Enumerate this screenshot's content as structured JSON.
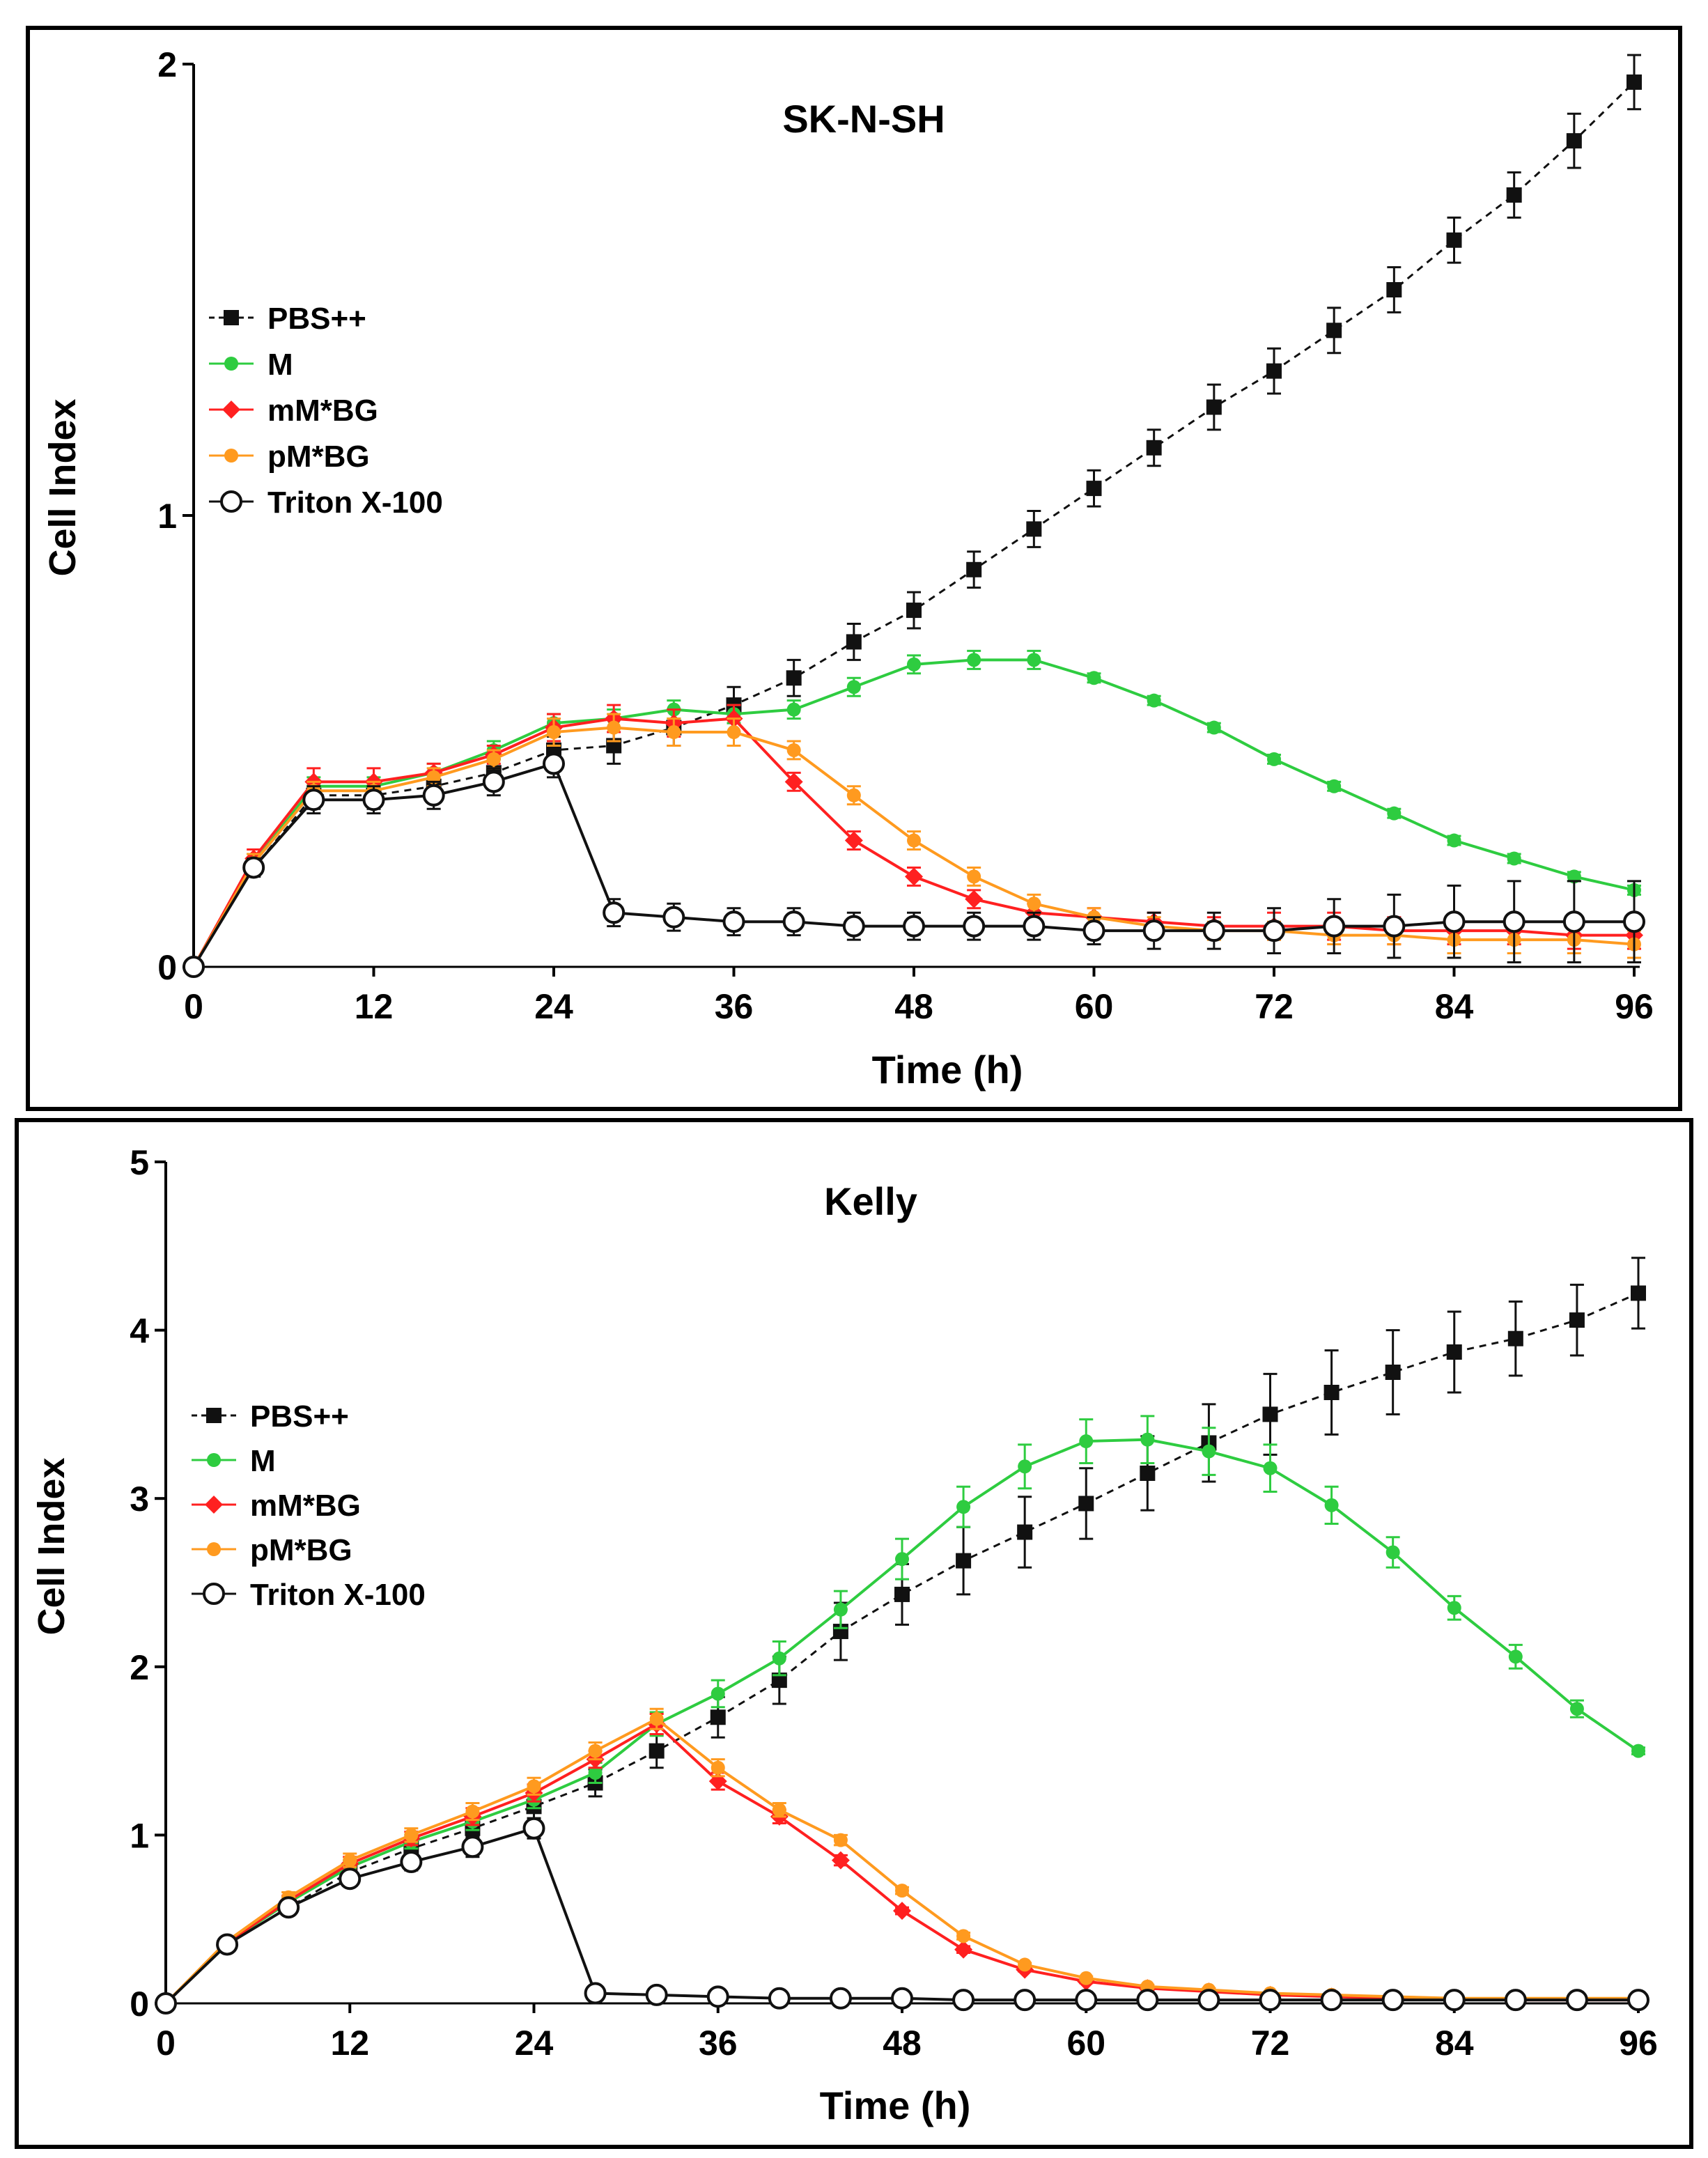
{
  "chart_data": [
    {
      "type": "line",
      "title": "SK-N-SH",
      "xlabel": "Time (h)",
      "ylabel": "Cell Index",
      "xlim": [
        0,
        96
      ],
      "ylim": [
        0,
        2
      ],
      "xticks": [
        0,
        12,
        24,
        36,
        48,
        60,
        72,
        84,
        96
      ],
      "xtick_labels": [
        "0",
        "12",
        "24",
        "36",
        "48",
        "60",
        "72",
        "84",
        "96"
      ],
      "yticks": [
        0,
        1,
        2
      ],
      "ytick_labels": [
        "0",
        "1",
        "2"
      ],
      "x": [
        0,
        4,
        8,
        12,
        16,
        20,
        24,
        28,
        32,
        36,
        40,
        44,
        48,
        52,
        56,
        60,
        64,
        68,
        72,
        76,
        80,
        84,
        88,
        92,
        96
      ],
      "legend_position": "left",
      "series": [
        {
          "name": "PBS++",
          "color": "#111111",
          "marker": "square",
          "dash": true,
          "values": [
            0,
            0.22,
            0.38,
            0.38,
            0.4,
            0.43,
            0.48,
            0.49,
            0.53,
            0.58,
            0.64,
            0.72,
            0.79,
            0.88,
            0.97,
            1.06,
            1.15,
            1.24,
            1.32,
            1.41,
            1.5,
            1.61,
            1.71,
            1.83,
            1.96
          ],
          "errors": [
            0,
            0.02,
            0.03,
            0.03,
            0.03,
            0.03,
            0.03,
            0.04,
            0.04,
            0.04,
            0.04,
            0.04,
            0.04,
            0.04,
            0.04,
            0.04,
            0.04,
            0.05,
            0.05,
            0.05,
            0.05,
            0.05,
            0.05,
            0.06,
            0.06
          ]
        },
        {
          "name": "M",
          "color": "#2ecc40",
          "marker": "circle",
          "dash": false,
          "values": [
            0,
            0.23,
            0.4,
            0.4,
            0.43,
            0.48,
            0.54,
            0.55,
            0.57,
            0.56,
            0.57,
            0.62,
            0.67,
            0.68,
            0.68,
            0.64,
            0.59,
            0.53,
            0.46,
            0.4,
            0.34,
            0.28,
            0.24,
            0.2,
            0.17
          ],
          "errors": [
            0,
            0.02,
            0.02,
            0.02,
            0.02,
            0.02,
            0.02,
            0.02,
            0.02,
            0.02,
            0.02,
            0.02,
            0.02,
            0.02,
            0.02,
            0.01,
            0.01,
            0.01,
            0.01,
            0.01,
            0.01,
            0.01,
            0.01,
            0.01,
            0.01
          ]
        },
        {
          "name": "mM*BG",
          "color": "#ff2020",
          "marker": "diamond",
          "dash": false,
          "values": [
            0,
            0.24,
            0.41,
            0.41,
            0.43,
            0.47,
            0.53,
            0.55,
            0.54,
            0.55,
            0.41,
            0.28,
            0.2,
            0.15,
            0.12,
            0.11,
            0.1,
            0.09,
            0.09,
            0.09,
            0.08,
            0.08,
            0.08,
            0.07,
            0.07
          ],
          "errors": [
            0,
            0.02,
            0.03,
            0.03,
            0.02,
            0.02,
            0.03,
            0.03,
            0.03,
            0.03,
            0.02,
            0.02,
            0.02,
            0.02,
            0.02,
            0.02,
            0.02,
            0.02,
            0.03,
            0.03,
            0.03,
            0.03,
            0.03,
            0.03,
            0.03
          ]
        },
        {
          "name": "pM*BG",
          "color": "#ff9a1f",
          "marker": "circle",
          "dash": false,
          "values": [
            0,
            0.23,
            0.39,
            0.39,
            0.42,
            0.46,
            0.52,
            0.53,
            0.52,
            0.52,
            0.48,
            0.38,
            0.28,
            0.2,
            0.14,
            0.11,
            0.09,
            0.08,
            0.08,
            0.07,
            0.07,
            0.06,
            0.06,
            0.06,
            0.05
          ],
          "errors": [
            0,
            0.02,
            0.02,
            0.02,
            0.02,
            0.02,
            0.03,
            0.03,
            0.03,
            0.03,
            0.02,
            0.02,
            0.02,
            0.02,
            0.02,
            0.02,
            0.02,
            0.02,
            0.02,
            0.02,
            0.02,
            0.03,
            0.03,
            0.03,
            0.03
          ]
        },
        {
          "name": "Triton X-100",
          "color": "#111111",
          "marker": "open-circle",
          "dash": false,
          "values": [
            0,
            0.22,
            0.37,
            0.37,
            0.38,
            0.41,
            0.45,
            0.12,
            0.11,
            0.1,
            0.1,
            0.09,
            0.09,
            0.09,
            0.09,
            0.08,
            0.08,
            0.08,
            0.08,
            0.09,
            0.09,
            0.1,
            0.1,
            0.1,
            0.1
          ],
          "errors": [
            0,
            0.02,
            0.03,
            0.03,
            0.03,
            0.03,
            0.03,
            0.03,
            0.03,
            0.03,
            0.03,
            0.03,
            0.03,
            0.03,
            0.03,
            0.03,
            0.04,
            0.04,
            0.05,
            0.06,
            0.07,
            0.08,
            0.09,
            0.09,
            0.09
          ]
        }
      ]
    },
    {
      "type": "line",
      "title": "Kelly",
      "xlabel": "Time (h)",
      "ylabel": "Cell Index",
      "xlim": [
        0,
        96
      ],
      "ylim": [
        0,
        5
      ],
      "xticks": [
        0,
        12,
        24,
        36,
        48,
        60,
        72,
        84,
        96
      ],
      "xtick_labels": [
        "0",
        "12",
        "24",
        "36",
        "48",
        "60",
        "72",
        "84",
        "96"
      ],
      "yticks": [
        0,
        1,
        2,
        3,
        4,
        5
      ],
      "ytick_labels": [
        "0",
        "1",
        "2",
        "3",
        "4",
        "5"
      ],
      "x": [
        0,
        4,
        8,
        12,
        16,
        20,
        24,
        28,
        32,
        36,
        40,
        44,
        48,
        52,
        56,
        60,
        64,
        68,
        72,
        76,
        80,
        84,
        88,
        92,
        96
      ],
      "legend_position": "left",
      "series": [
        {
          "name": "PBS++",
          "color": "#111111",
          "marker": "square",
          "dash": true,
          "values": [
            0,
            0.35,
            0.57,
            0.78,
            0.92,
            1.04,
            1.17,
            1.31,
            1.5,
            1.7,
            1.92,
            2.21,
            2.43,
            2.63,
            2.8,
            2.97,
            3.15,
            3.33,
            3.5,
            3.63,
            3.75,
            3.87,
            3.95,
            4.06,
            4.22
          ],
          "errors": [
            0,
            0.02,
            0.04,
            0.05,
            0.06,
            0.06,
            0.07,
            0.08,
            0.1,
            0.12,
            0.14,
            0.17,
            0.18,
            0.2,
            0.21,
            0.21,
            0.22,
            0.23,
            0.24,
            0.25,
            0.25,
            0.24,
            0.22,
            0.21,
            0.21
          ]
        },
        {
          "name": "M",
          "color": "#2ecc40",
          "marker": "circle",
          "dash": false,
          "values": [
            0,
            0.36,
            0.6,
            0.81,
            0.96,
            1.08,
            1.21,
            1.37,
            1.66,
            1.84,
            2.05,
            2.34,
            2.64,
            2.95,
            3.19,
            3.34,
            3.35,
            3.28,
            3.18,
            2.96,
            2.68,
            2.35,
            2.06,
            1.75,
            1.5
          ],
          "errors": [
            0,
            0.02,
            0.03,
            0.04,
            0.04,
            0.05,
            0.05,
            0.06,
            0.07,
            0.08,
            0.1,
            0.11,
            0.12,
            0.12,
            0.13,
            0.13,
            0.14,
            0.14,
            0.14,
            0.11,
            0.09,
            0.07,
            0.07,
            0.05,
            0.02
          ]
        },
        {
          "name": "mM*BG",
          "color": "#ff2020",
          "marker": "diamond",
          "dash": false,
          "values": [
            0,
            0.36,
            0.61,
            0.83,
            0.98,
            1.11,
            1.25,
            1.45,
            1.66,
            1.32,
            1.11,
            0.85,
            0.55,
            0.32,
            0.2,
            0.13,
            0.09,
            0.07,
            0.05,
            0.04,
            0.03,
            0.03,
            0.02,
            0.02,
            0.02
          ],
          "errors": [
            0,
            0.02,
            0.03,
            0.04,
            0.04,
            0.05,
            0.05,
            0.05,
            0.06,
            0.05,
            0.04,
            0.03,
            0.02,
            0.02,
            0.01,
            0.01,
            0.01,
            0.01,
            0.01,
            0.01,
            0.01,
            0.01,
            0.01,
            0.01,
            0.01
          ]
        },
        {
          "name": "pM*BG",
          "color": "#ff9a1f",
          "marker": "circle",
          "dash": false,
          "values": [
            0,
            0.37,
            0.63,
            0.85,
            1.0,
            1.14,
            1.29,
            1.5,
            1.69,
            1.4,
            1.15,
            0.97,
            0.67,
            0.4,
            0.23,
            0.15,
            0.1,
            0.08,
            0.06,
            0.05,
            0.04,
            0.03,
            0.03,
            0.03,
            0.03
          ],
          "errors": [
            0,
            0.02,
            0.03,
            0.04,
            0.04,
            0.05,
            0.05,
            0.05,
            0.06,
            0.05,
            0.04,
            0.03,
            0.02,
            0.02,
            0.01,
            0.01,
            0.01,
            0.01,
            0.01,
            0.01,
            0.01,
            0.01,
            0.01,
            0.01,
            0.01
          ]
        },
        {
          "name": "Triton X-100",
          "color": "#111111",
          "marker": "open-circle",
          "dash": false,
          "values": [
            0,
            0.35,
            0.57,
            0.74,
            0.84,
            0.93,
            1.04,
            0.06,
            0.05,
            0.04,
            0.03,
            0.03,
            0.03,
            0.02,
            0.02,
            0.02,
            0.02,
            0.02,
            0.02,
            0.02,
            0.02,
            0.02,
            0.02,
            0.02,
            0.02
          ],
          "errors": [
            0,
            0.02,
            0.03,
            0.04,
            0.05,
            0.06,
            0.06,
            0.01,
            0.01,
            0.01,
            0.01,
            0.01,
            0.01,
            0.01,
            0.01,
            0.01,
            0.01,
            0.01,
            0.01,
            0.01,
            0.01,
            0.01,
            0.01,
            0.01,
            0.01
          ]
        }
      ]
    }
  ]
}
